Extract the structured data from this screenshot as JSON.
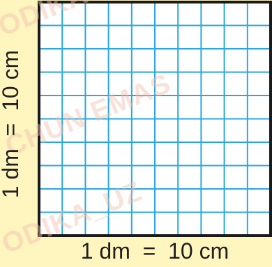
{
  "grid": {
    "rows": 10,
    "columns": 10,
    "line_color": "#29a8e0",
    "border_color": "#1a1a1a",
    "fill_color": "#ffffff"
  },
  "labels": {
    "bottom": "1 dm  =  10 cm",
    "side": "1 dm  =  10 cm"
  },
  "watermark": {
    "text_top": "ODIKA",
    "text_middle": "CHUN EMAS",
    "text_bottom": "ODIKA_UZ"
  },
  "colors": {
    "background": "#fff5bf",
    "label_text": "#1f1f1f"
  }
}
